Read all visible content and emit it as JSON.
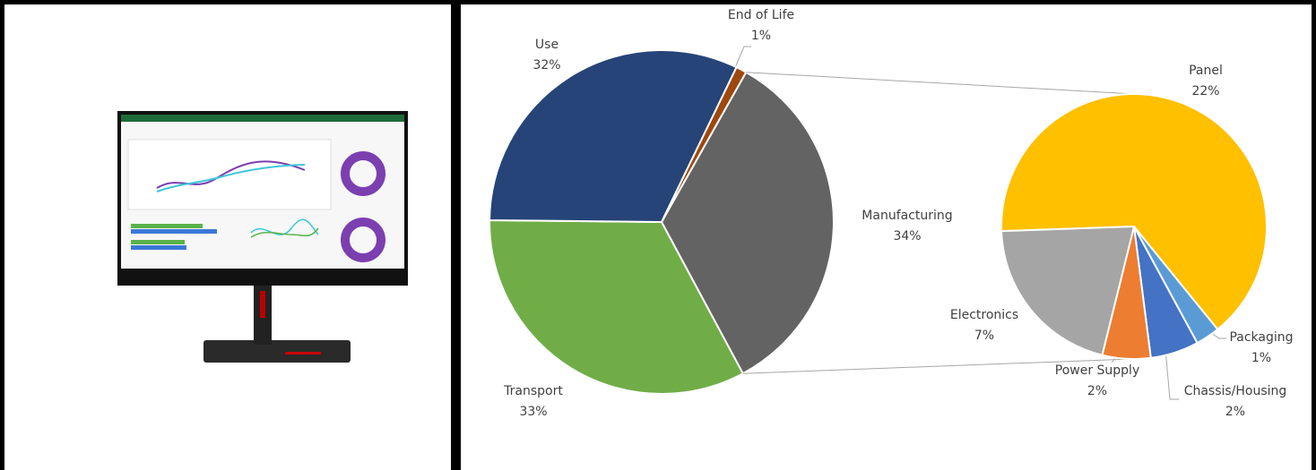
{
  "chart_data": {
    "type": "pie",
    "categories": [
      "Manufacturing",
      "Transport",
      "Use",
      "End of Life"
    ],
    "values": [
      34,
      33,
      32,
      1
    ],
    "value_labels": [
      "34%",
      "33%",
      "32%",
      "1%"
    ],
    "colors": [
      "#636363",
      "#70ad47",
      "#264478",
      "#9e480e"
    ],
    "sub_pie": {
      "categories": [
        "Panel",
        "Packaging",
        "Chassis/Housing",
        "Power Supply",
        "Electronics"
      ],
      "values": [
        22,
        1,
        2,
        2,
        7
      ],
      "value_labels": [
        "22%",
        "1%",
        "2%",
        "2%",
        "7%"
      ],
      "colors": [
        "#ffc000",
        "#5b9bd5",
        "#4472c4",
        "#ed7d31",
        "#a5a5a5"
      ]
    }
  }
}
